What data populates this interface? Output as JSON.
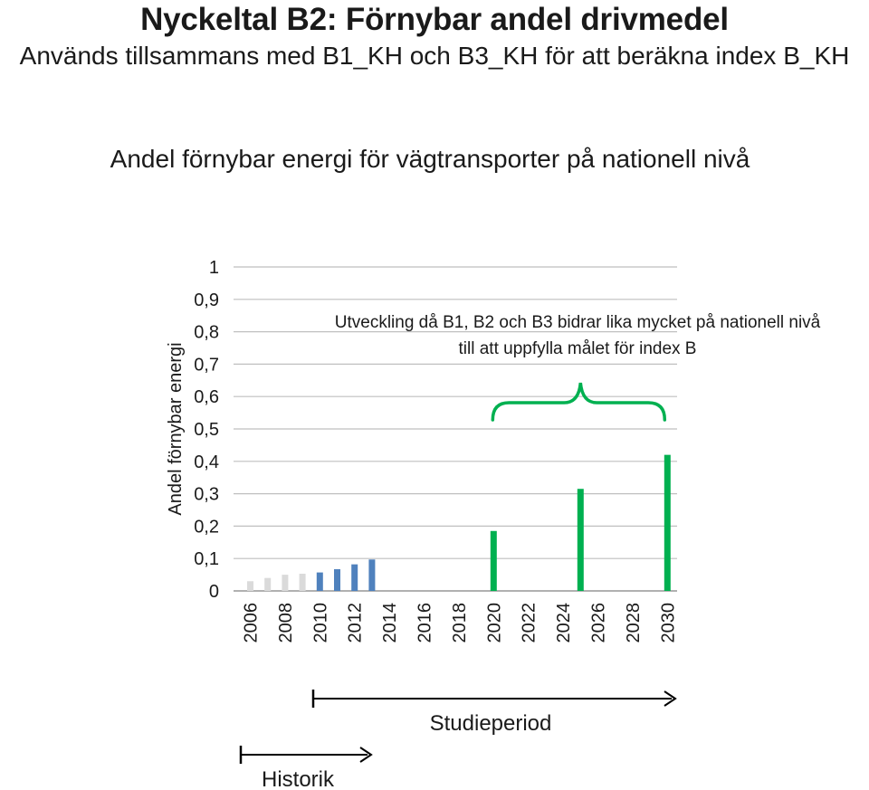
{
  "header": {
    "title": "Nyckeltal B2: Förnybar andel drivmedel",
    "subtitle": "Används tillsammans med B1_KH och B3_KH för att beräkna index B_KH"
  },
  "chart_data": {
    "type": "bar",
    "title": "Andel förnybar energi för vägtransporter på nationell nivå",
    "xlabel": "",
    "ylabel": "Andel förnybar energi",
    "ylim": [
      0,
      1
    ],
    "y_ticks": [
      "0",
      "0,1",
      "0,2",
      "0,3",
      "0,4",
      "0,5",
      "0,6",
      "0,7",
      "0,8",
      "0,9",
      "1"
    ],
    "y_tick_values": [
      0,
      0.1,
      0.2,
      0.3,
      0.4,
      0.5,
      0.6,
      0.7,
      0.8,
      0.9,
      1.0
    ],
    "x": [
      2006,
      2007,
      2008,
      2009,
      2010,
      2011,
      2012,
      2013,
      2014,
      2015,
      2016,
      2017,
      2018,
      2019,
      2020,
      2021,
      2022,
      2023,
      2024,
      2025,
      2026,
      2027,
      2028,
      2029,
      2030
    ],
    "x_tick_labels": [
      "2006",
      "2008",
      "2010",
      "2012",
      "2014",
      "2016",
      "2018",
      "2020",
      "2022",
      "2024",
      "2026",
      "2028",
      "2030"
    ],
    "grid": true,
    "series": [
      {
        "color": "#dadada",
        "points": [
          {
            "x": 2006,
            "y": 0.03
          },
          {
            "x": 2007,
            "y": 0.04
          },
          {
            "x": 2008,
            "y": 0.05
          },
          {
            "x": 2009,
            "y": 0.053
          }
        ]
      },
      {
        "color": "#4f81bd",
        "points": [
          {
            "x": 2010,
            "y": 0.057
          },
          {
            "x": 2011,
            "y": 0.067
          },
          {
            "x": 2012,
            "y": 0.082
          },
          {
            "x": 2013,
            "y": 0.097
          }
        ]
      },
      {
        "color": "#00b050",
        "points": [
          {
            "x": 2020,
            "y": 0.185
          },
          {
            "x": 2025,
            "y": 0.315
          },
          {
            "x": 2030,
            "y": 0.42
          }
        ]
      }
    ],
    "annotation": {
      "text_line1": "Utveckling då B1, B2 och B3 bidrar lika mycket på nationell nivå",
      "text_line2": "till att uppfylla målet för index B",
      "brace_color": "#00b050",
      "brace_from": 2020,
      "brace_to": 2030
    },
    "periods": {
      "study_label": "Studieperiod",
      "history_label": "Historik"
    }
  }
}
